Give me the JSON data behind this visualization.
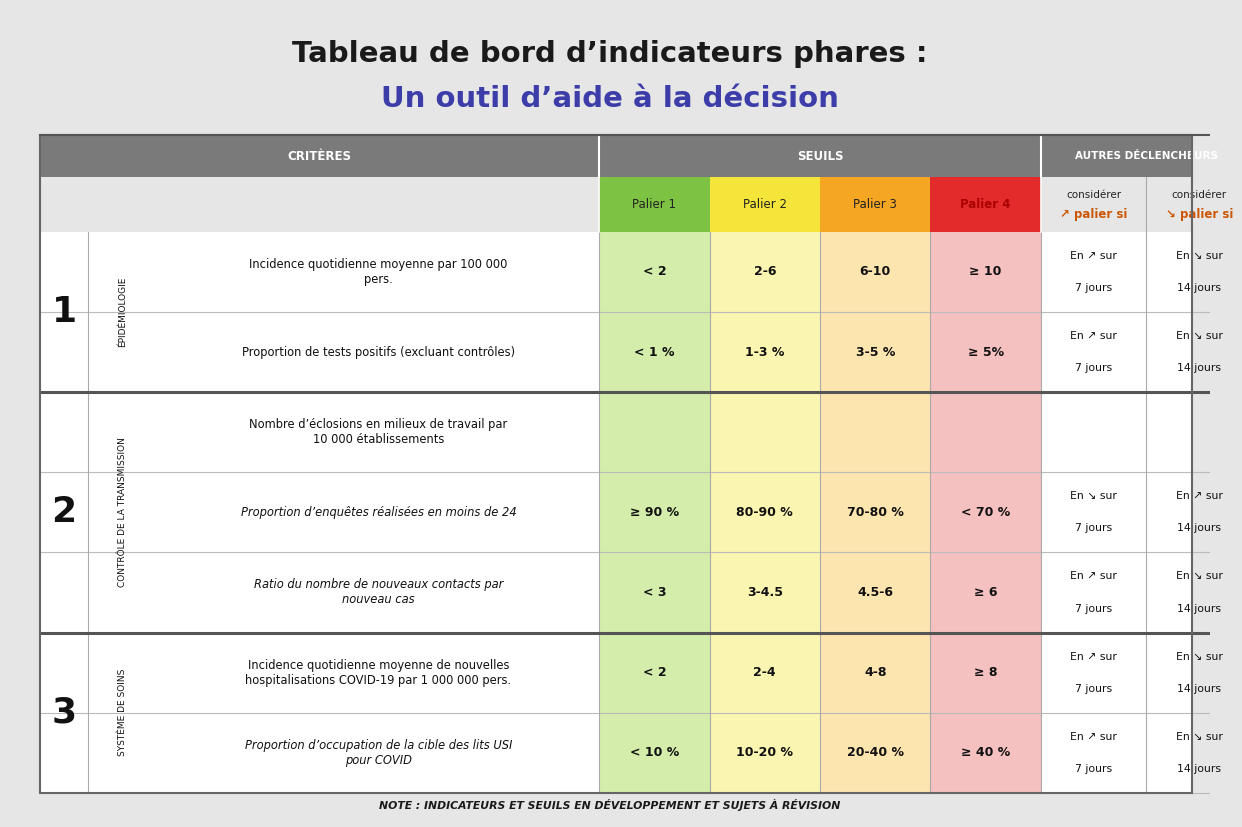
{
  "title_line1": "Tableau de bord d’indicateurs phares :",
  "title_line2": "Un outil d’aide à la décision",
  "title_line1_color": "#1a1a1a",
  "title_line2_color": "#3d3daa",
  "bg_color": "#e6e6e6",
  "header_bg": "#7a7a7a",
  "palier_colors": [
    "#7dc242",
    "#f5e53a",
    "#f5a623",
    "#e32b2b"
  ],
  "palier_light_colors": [
    "#d4edaa",
    "#faf5b0",
    "#fde5b0",
    "#f5c0c0"
  ],
  "palier_labels": [
    "Palier 1",
    "Palier 2",
    "Palier 3",
    "Palier 4"
  ],
  "row_separator_color": "#bbbbbb",
  "section_separator_color": "#555555",
  "note_text": "NOTE : INDICATEURS ET SEUILS EN DÉVELOPPEMENT ET SUJETS À RÉVISION",
  "rows": [
    {
      "section": "1",
      "section_label": "ÉPIDÉMIOLOGIE",
      "criteria": "Incidence quotidienne moyenne par 100 000\npers.",
      "italic": false,
      "p1": "< 2",
      "p2": "2-6",
      "p3": "6-10",
      "p4": "≥ 10",
      "up_days": "7 jours",
      "down_days": "14 jours",
      "has_arrows": true,
      "up_arrow_up": true
    },
    {
      "section": "1",
      "section_label": "ÉPIDÉMIOLOGIE",
      "criteria": "Proportion de tests positifs (excluant contrôles)",
      "italic": false,
      "p1": "< 1 %",
      "p2": "1-3 %",
      "p3": "3-5 %",
      "p4": "≥ 5%",
      "up_days": "7 jours",
      "down_days": "14 jours",
      "has_arrows": true,
      "up_arrow_up": true
    },
    {
      "section": "2",
      "section_label": "CONTRÔLE DE LA TRANSMISSION",
      "criteria": "Nombre d’éclosions en milieux de travail par\n10 000 établissements",
      "italic": false,
      "p1": "",
      "p2": "",
      "p3": "",
      "p4": "",
      "up_days": "",
      "down_days": "",
      "has_arrows": false,
      "up_arrow_up": true
    },
    {
      "section": "2",
      "section_label": "CONTRÔLE DE LA TRANSMISSION",
      "criteria": "Proportion d’enquêtes réalisées en moins de 24",
      "italic": true,
      "p1": "≥ 90 %",
      "p2": "80-90 %",
      "p3": "70-80 %",
      "p4": "< 70 %",
      "up_days": "7 jours",
      "down_days": "14 jours",
      "has_arrows": true,
      "up_arrow_up": false
    },
    {
      "section": "2",
      "section_label": "CONTRÔLE DE LA TRANSMISSION",
      "criteria": "Ratio du nombre de nouveaux contacts par\nnouveau cas",
      "italic": true,
      "p1": "< 3",
      "p2": "3-4.5",
      "p3": "4.5-6",
      "p4": "≥ 6",
      "up_days": "7 jours",
      "down_days": "14 jours",
      "has_arrows": true,
      "up_arrow_up": true
    },
    {
      "section": "3",
      "section_label": "SYSTÈME DE SOINS",
      "criteria": "Incidence quotidienne moyenne de nouvelles\nhospitalisations COVID-19 par 1 000 000 pers.",
      "italic": false,
      "p1": "< 2",
      "p2": "2-4",
      "p3": "4-8",
      "p4": "≥ 8",
      "up_days": "7 jours",
      "down_days": "14 jours",
      "has_arrows": true,
      "up_arrow_up": true
    },
    {
      "section": "3",
      "section_label": "SYSTÈME DE SOINS",
      "criteria": "Proportion d’occupation de la cible des lits USI\npour COVID",
      "italic": true,
      "p1": "< 10 %",
      "p2": "10-20 %",
      "p3": "20-40 %",
      "p4": "≥ 40 %",
      "up_days": "7 jours",
      "down_days": "14 jours",
      "has_arrows": true,
      "up_arrow_up": true
    }
  ],
  "section_info": {
    "1": {
      "label": "ÉPIDÉMIOLOGIE",
      "row_indices": [
        0,
        1
      ]
    },
    "2": {
      "label": "CONTRÔLE DE LA TRANSMISSION",
      "row_indices": [
        2,
        3,
        4
      ]
    },
    "3": {
      "label": "SYSTÈME DE SOINS",
      "row_indices": [
        5,
        6
      ]
    }
  },
  "section_order": [
    "1",
    "2",
    "3"
  ],
  "section_numbers": {
    "1": "1",
    "2": "2",
    "3": "3"
  }
}
